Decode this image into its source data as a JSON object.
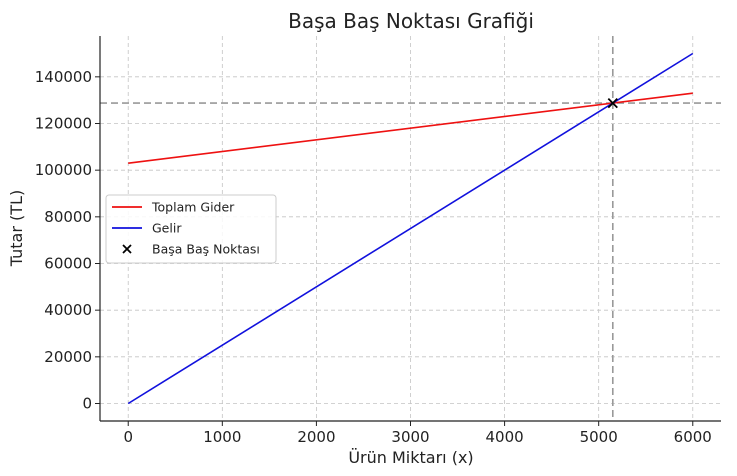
{
  "chart_data": {
    "type": "line",
    "title": "Başa Baş Noktası Grafiği",
    "xlabel": "Ürün Miktarı (x)",
    "ylabel": "Tutar (TL)",
    "xlim": [
      -300,
      6300
    ],
    "ylim": [
      -7500,
      157500
    ],
    "xticks": [
      0,
      1000,
      2000,
      3000,
      4000,
      5000,
      6000
    ],
    "yticks": [
      0,
      20000,
      40000,
      60000,
      80000,
      100000,
      120000,
      140000
    ],
    "grid": true,
    "legend_position": "center-left",
    "series": [
      {
        "name": "Toplam Gider",
        "color": "#ee1111",
        "x": [
          0,
          6000
        ],
        "y": [
          103000,
          133000
        ]
      },
      {
        "name": "Gelir",
        "color": "#1111dd",
        "x": [
          0,
          6000
        ],
        "y": [
          0,
          150000
        ]
      }
    ],
    "points": [
      {
        "name": "Başa Baş Noktası",
        "color": "#000000",
        "marker": "x",
        "x": 5150,
        "y": 128750
      }
    ],
    "reference_lines": {
      "vertical_x": 5150,
      "horizontal_y": 128750,
      "color": "#999999",
      "style": "dashed"
    }
  }
}
